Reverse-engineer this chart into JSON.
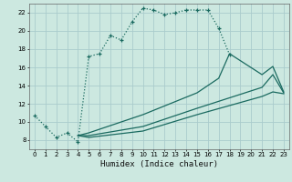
{
  "xlabel": "Humidex (Indice chaleur)",
  "bg_color": "#cce8e0",
  "grid_color": "#aacccc",
  "line_color": "#1a6a60",
  "xlim": [
    -0.5,
    23.5
  ],
  "ylim": [
    7.0,
    23.0
  ],
  "xticks": [
    0,
    1,
    2,
    3,
    4,
    5,
    6,
    7,
    8,
    9,
    10,
    11,
    12,
    13,
    14,
    15,
    16,
    17,
    18,
    19,
    20,
    21,
    22,
    23
  ],
  "yticks": [
    8,
    10,
    12,
    14,
    16,
    18,
    20,
    22
  ],
  "series1_x": [
    0,
    1,
    2,
    3,
    4,
    5,
    6,
    7,
    8,
    9,
    10,
    11,
    12,
    13,
    14,
    15,
    16,
    17,
    18
  ],
  "series1_y": [
    10.7,
    9.5,
    8.3,
    8.8,
    7.8,
    17.2,
    17.5,
    19.5,
    19.0,
    21.0,
    22.5,
    22.3,
    21.8,
    22.0,
    22.3,
    22.3,
    22.3,
    20.3,
    17.4
  ],
  "series2_x": [
    4,
    5,
    10,
    15,
    16,
    17,
    18,
    21,
    22,
    23
  ],
  "series2_y": [
    8.5,
    8.8,
    10.8,
    13.2,
    14.0,
    14.8,
    17.5,
    15.2,
    16.1,
    13.3
  ],
  "series3_x": [
    4,
    5,
    10,
    15,
    21,
    22,
    23
  ],
  "series3_y": [
    8.5,
    8.5,
    9.5,
    11.5,
    13.8,
    15.2,
    13.2
  ],
  "series4_x": [
    4,
    5,
    10,
    15,
    21,
    22,
    23
  ],
  "series4_y": [
    8.5,
    8.3,
    9.0,
    10.8,
    12.8,
    13.3,
    13.1
  ]
}
